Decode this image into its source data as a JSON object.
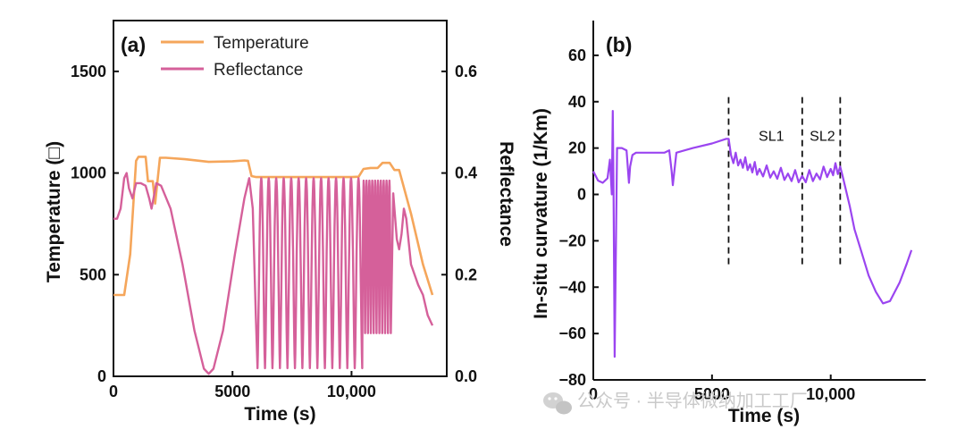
{
  "colors": {
    "temperature": "#F5A65B",
    "reflectance": "#D5609A",
    "curvature": "#9B45F0",
    "axis": "#111111",
    "watermark": "#c9c9c9"
  },
  "watermark": {
    "icon": "wechat-icon",
    "text": "公众号 · 半导体微纳加工工厂"
  },
  "chart_data": [
    {
      "type": "line",
      "panel_label": "(a)",
      "xlabel": "Time (s)",
      "ylabel": "Temperature (□)",
      "y2label": "Reflectance",
      "xlim": [
        0,
        14000
      ],
      "ylim": [
        0,
        1750
      ],
      "y2lim": [
        0,
        0.7
      ],
      "xticks": [
        0,
        5000,
        10000
      ],
      "xtick_labels": [
        "0",
        "5000",
        "10,000"
      ],
      "yticks": [
        0,
        500,
        1000,
        1500
      ],
      "yticklabels": [
        "0",
        "500",
        "1000",
        "1500"
      ],
      "y2ticks": [
        0,
        0.2,
        0.4,
        0.6
      ],
      "y2ticklabels": [
        "0.0",
        "0.2",
        "0.4",
        "0.6"
      ],
      "legend_position": "top-left",
      "series": [
        {
          "name": "Temperature",
          "axis": "left",
          "x": [
            0,
            450,
            700,
            950,
            1050,
            1350,
            1450,
            1650,
            1750,
            1950,
            2200,
            3000,
            4000,
            5000,
            5500,
            5650,
            5800,
            6000,
            8000,
            10000,
            10300,
            10500,
            10800,
            11100,
            11300,
            11600,
            11800,
            12000,
            12500,
            13000,
            13400
          ],
          "y": [
            400,
            400,
            600,
            1060,
            1080,
            1080,
            960,
            960,
            850,
            1075,
            1075,
            1068,
            1055,
            1058,
            1062,
            1060,
            985,
            980,
            980,
            980,
            982,
            1020,
            1025,
            1025,
            1050,
            1050,
            1015,
            1015,
            800,
            550,
            400
          ]
        },
        {
          "name": "Reflectance",
          "axis": "right",
          "x_range": [
            0,
            13400
          ],
          "description_values": {
            "start": 0.31,
            "early_peak_at_550": 0.4,
            "minimum_at_4000": 0.005,
            "rise_at_5700": 0.39,
            "fast_oscillation_min": 0.016,
            "fast_oscillation_max": 0.39,
            "osc1": {
              "start": 6050,
              "end": 10450,
              "count": 14
            },
            "osc2": {
              "start": 10450,
              "end": 11650,
              "count": 10
            },
            "end": 0.1
          }
        }
      ]
    },
    {
      "type": "line",
      "panel_label": "(b)",
      "xlabel": "Time (s)",
      "ylabel": "In-situ curvature (1/Km)",
      "xlim": [
        0,
        14000
      ],
      "ylim": [
        -80,
        75
      ],
      "xticks": [
        0,
        5000,
        10000
      ],
      "xtick_labels": [
        "0",
        "5000",
        "10,000"
      ],
      "yticks": [
        -80,
        -60,
        -40,
        -20,
        0,
        20,
        40,
        60
      ],
      "yticklabels": [
        "−80",
        "−60",
        "−40",
        "−20",
        "0",
        "20",
        "40",
        "60"
      ],
      "annotations": [
        {
          "text": "SL1",
          "x": 7500,
          "y": 25
        },
        {
          "text": "SL2",
          "x": 9650,
          "y": 25
        }
      ],
      "vlines": [
        5700,
        8800,
        10400
      ],
      "series": [
        {
          "name": "",
          "x": [
            0,
            200,
            400,
            600,
            700,
            780,
            820,
            850,
            900,
            1000,
            1200,
            1400,
            1500,
            1550,
            1650,
            1800,
            2200,
            3000,
            3200,
            3300,
            3350,
            3500,
            4200,
            5000,
            5600,
            5700,
            5800,
            6200,
            6600,
            7000,
            7600,
            8200,
            8800,
            9400,
            10000,
            10400,
            10500,
            10800,
            11000,
            11300,
            11600,
            11900,
            12200,
            12500,
            12900,
            13200,
            13400
          ],
          "y": [
            10,
            6,
            5,
            7,
            15,
            0,
            36,
            5,
            -70,
            20,
            20,
            19,
            5,
            12,
            17,
            18,
            18,
            18,
            19,
            10,
            4,
            18,
            20,
            22,
            24,
            24,
            17,
            15,
            13,
            11,
            10,
            9,
            8,
            9,
            11,
            12,
            8,
            -5,
            -15,
            -25,
            -35,
            -42,
            -47,
            -46,
            -38,
            -30,
            -24
          ]
        }
      ]
    }
  ]
}
